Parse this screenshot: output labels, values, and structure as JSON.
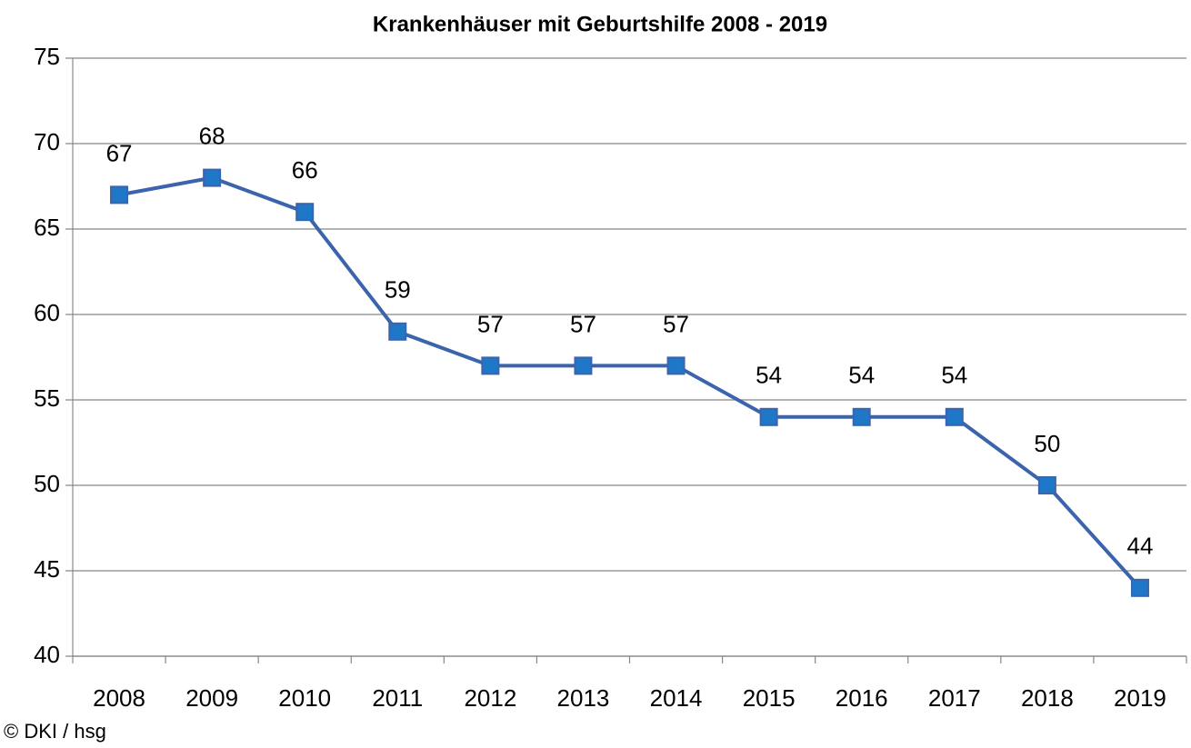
{
  "chart_data": {
    "type": "line",
    "title": "Krankenhäuser mit Geburtshilfe 2008 - 2019",
    "source": "© DKI / hsg",
    "categories": [
      "2008",
      "2009",
      "2010",
      "2011",
      "2012",
      "2013",
      "2014",
      "2015",
      "2016",
      "2017",
      "2018",
      "2019"
    ],
    "series": [
      {
        "name": "Krankenhäuser mit Geburtshilfe",
        "color": "#3b64ad",
        "marker_color": "#1f77c8",
        "values": [
          67,
          68,
          66,
          59,
          57,
          57,
          57,
          54,
          54,
          54,
          50,
          44
        ]
      }
    ],
    "ylim": [
      40,
      75
    ],
    "yticks": [
      40,
      45,
      50,
      55,
      60,
      65,
      70,
      75
    ],
    "grid": true
  }
}
